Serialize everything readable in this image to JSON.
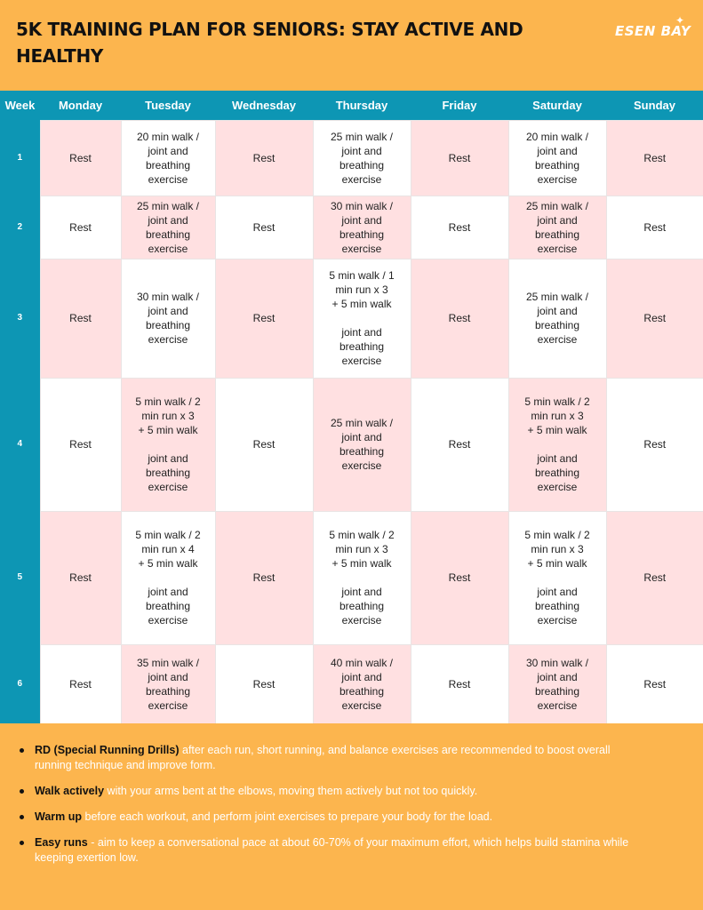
{
  "header": {
    "title": "5K TRAINING PLAN FOR SENIORS: STAY ACTIVE AND HEALTHY",
    "logo": "ESEN BAY",
    "logo_star": "✦"
  },
  "table": {
    "columns": [
      "Week",
      "Monday",
      "Tuesday",
      "Wednesday",
      "Thursday",
      "Friday",
      "Saturday",
      "Sunday"
    ],
    "rows": [
      {
        "week": "1",
        "cells": [
          "Rest",
          "20 min walk /\njoint and\nbreathing\nexercise",
          "Rest",
          "25 min walk /\njoint and\nbreathing\nexercise",
          "Rest",
          "20 min walk /\njoint and\nbreathing\nexercise",
          "Rest"
        ]
      },
      {
        "week": "2",
        "cells": [
          "Rest",
          "25 min walk /\njoint and\nbreathing\nexercise",
          "Rest",
          "30 min walk /\njoint and\nbreathing\nexercise",
          "Rest",
          "25 min walk /\njoint and\nbreathing\nexercise",
          "Rest"
        ]
      },
      {
        "week": "3",
        "cells": [
          "Rest",
          "30 min walk /\njoint and\nbreathing\nexercise",
          "Rest",
          "5 min walk / 1\nmin run x 3\n+ 5 min walk\n\njoint and\nbreathing\nexercise",
          "Rest",
          "25 min walk /\njoint and\nbreathing\nexercise",
          "Rest"
        ]
      },
      {
        "week": "4",
        "cells": [
          "Rest",
          "5 min walk / 2\nmin run x 3\n+ 5 min walk\n\njoint and\nbreathing\nexercise",
          "Rest",
          "25 min walk /\njoint and\nbreathing\nexercise",
          "Rest",
          "5 min walk / 2\nmin run x 3\n+ 5 min walk\n\njoint and\nbreathing\nexercise",
          "Rest"
        ]
      },
      {
        "week": "5",
        "cells": [
          "Rest",
          "5 min walk / 2\nmin run x 4\n+ 5 min walk\n\njoint and\nbreathing\nexercise",
          "Rest",
          "5 min walk / 2\nmin run x 3\n+ 5 min walk\n\njoint and\nbreathing\nexercise",
          "Rest",
          "5 min walk / 2\nmin run x 3\n+ 5 min walk\n\njoint and\nbreathing\nexercise",
          "Rest"
        ]
      },
      {
        "week": "6",
        "cells": [
          "Rest",
          "35 min walk /\njoint and\nbreathing\nexercise",
          "Rest",
          "40 min walk /\njoint and\nbreathing\nexercise",
          "Rest",
          "30 min walk /\njoint and\nbreathing\nexercise",
          "Rest"
        ]
      }
    ]
  },
  "notes": [
    {
      "term": "RD (Special Running Drills)",
      "text": " after each run, short running, and balance exercises are recommended to boost overall running technique and improve form."
    },
    {
      "term": "Walk actively",
      "text": " with your arms bent at the elbows, moving them actively but not too quickly."
    },
    {
      "term": "Warm up",
      "text": " before each workout, and perform joint exercises to prepare your body for the load."
    },
    {
      "term": "Easy runs",
      "text": " - aim to keep a conversational pace at about 60-70% of your maximum effort, which helps build stamina while keeping exertion low."
    }
  ],
  "colors": {
    "background": "#FCB54E",
    "header_blue": "#0D96B4",
    "cell_pink": "#FFE0E1",
    "cell_white": "#FFFFFF"
  }
}
